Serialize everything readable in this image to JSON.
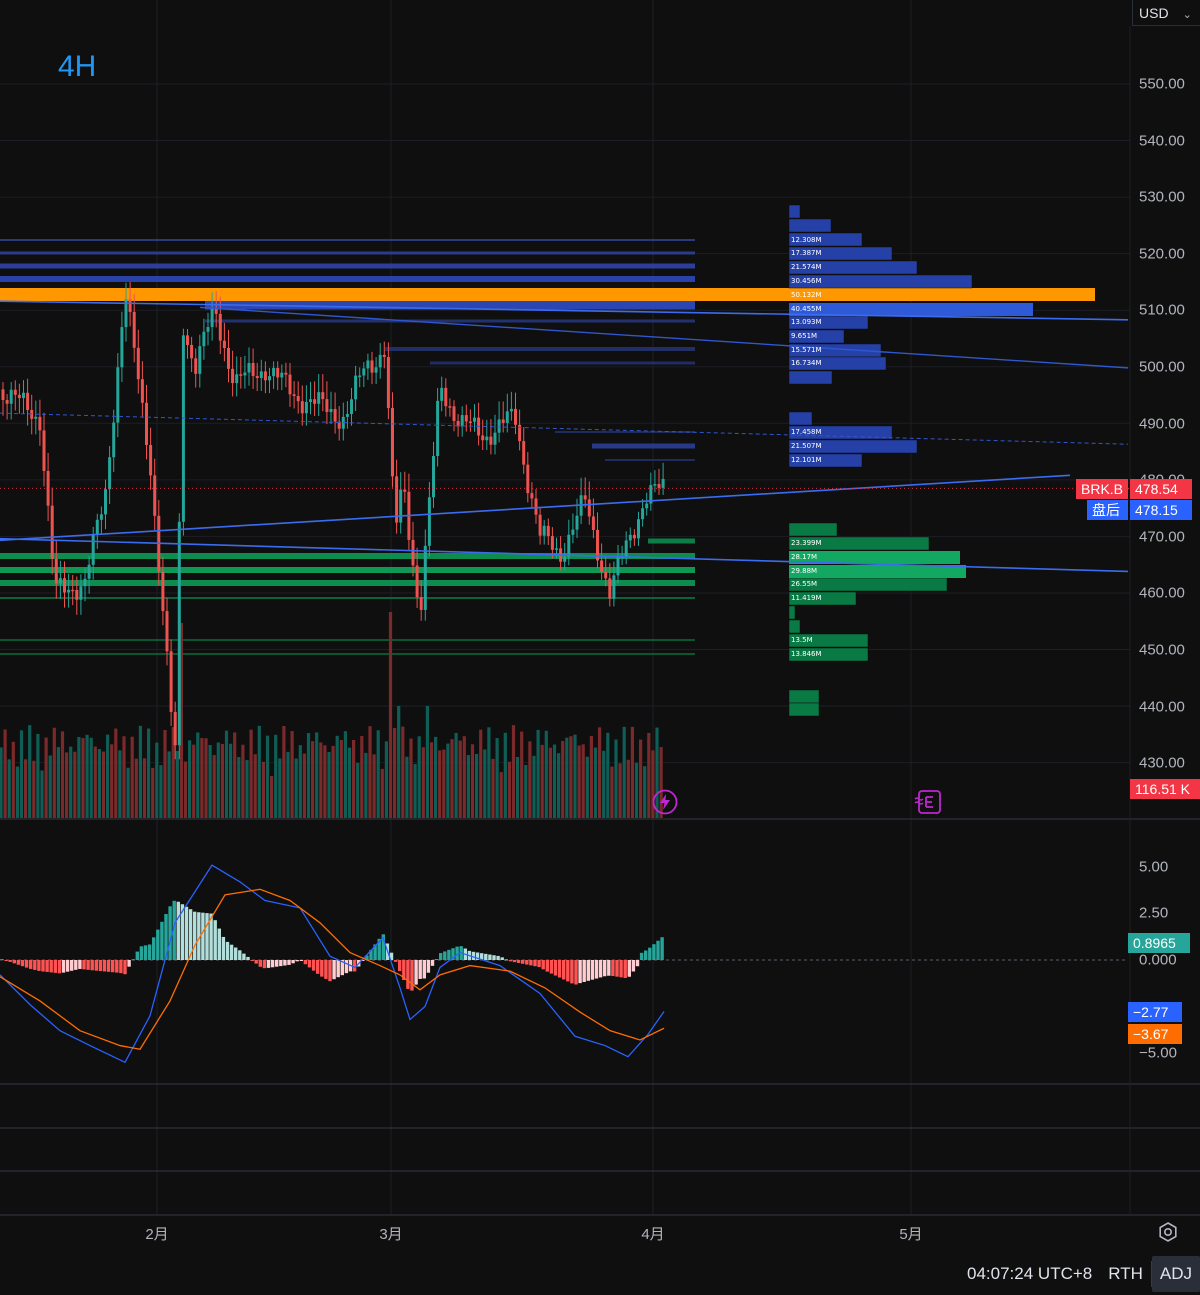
{
  "timeframe": "4H",
  "currency": {
    "label": "USD",
    "chevron": "chevron-down-icon"
  },
  "price_axis": {
    "ticks": [
      "550.00",
      "540.00",
      "530.00",
      "520.00",
      "510.00",
      "500.00",
      "490.00",
      "480.00",
      "470.00",
      "460.00",
      "450.00",
      "440.00",
      "430.00"
    ]
  },
  "macd_axis": {
    "ticks": [
      "5.00",
      "2.50",
      "0.000",
      "−5.00"
    ]
  },
  "time_axis": {
    "ticks": [
      "2月",
      "3月",
      "4月",
      "5月"
    ]
  },
  "badges": {
    "symbol": "BRK.B",
    "last_price": "478.54",
    "after_hours_label": "盘后",
    "after_hours_price": "478.15",
    "volume": "116.51 K",
    "macd_hist": "0.8965",
    "macd_line": "−2.77",
    "macd_signal": "−3.67"
  },
  "volume_profile_labels": [
    "12.308M",
    "17.387M",
    "21.574M",
    "30.456M",
    "50.132M",
    "40.455M",
    "13.093M",
    "9.651M",
    "15.571M",
    "16.734M",
    "17.458M",
    "21.507M",
    "12.101M",
    "23.399M",
    "28.17M",
    "29.88M",
    "26.55M",
    "11.419M",
    "13.5M",
    "13.846M"
  ],
  "status_bar": {
    "time": "04:07:24 UTC+8",
    "session": "RTH",
    "adj": "ADJ"
  },
  "colors": {
    "up": "#26a69a",
    "down": "#ef5350",
    "poc": "#ff9800",
    "trend": "#2962ff",
    "macd": "#2962ff",
    "signal": "#ff6d00",
    "text": "#b2b5be"
  },
  "chart_data": {
    "type": "candlestick",
    "timeframe": "4H",
    "x_ticks": [
      "2月",
      "3月",
      "4月",
      "5月"
    ],
    "y_range": [
      425,
      555
    ],
    "last_price": 478.54,
    "after_hours": 478.15,
    "key_levels": [
      {
        "kind": "poc",
        "price": 511.2
      },
      {
        "kind": "resistance_zone",
        "price": 510.2
      },
      {
        "kind": "support_zone",
        "price": 466.0
      },
      {
        "kind": "support_zone",
        "price": 463.0
      },
      {
        "kind": "support_zone",
        "price": 460.5
      }
    ],
    "close_path": [
      {
        "t": "1月中",
        "c": 496
      },
      {
        "t": "1月下",
        "c": 486
      },
      {
        "t": "1月底",
        "c": 476
      },
      {
        "t": "2月初",
        "c": 490
      },
      {
        "t": "2月上",
        "c": 508
      },
      {
        "t": "2月中",
        "c": 502
      },
      {
        "t": "2月下",
        "c": 497
      },
      {
        "t": "3月初",
        "c": 480
      },
      {
        "t": "3月上",
        "c": 500
      },
      {
        "t": "3月中",
        "c": 495
      },
      {
        "t": "3月下",
        "c": 478
      },
      {
        "t": "3月底",
        "c": 470
      },
      {
        "t": "4月初",
        "c": 478.5
      }
    ],
    "macd": {
      "hist_last": 0.8965,
      "macd_last": -2.77,
      "signal_last": -3.67,
      "range": [
        -6,
        6
      ]
    }
  }
}
